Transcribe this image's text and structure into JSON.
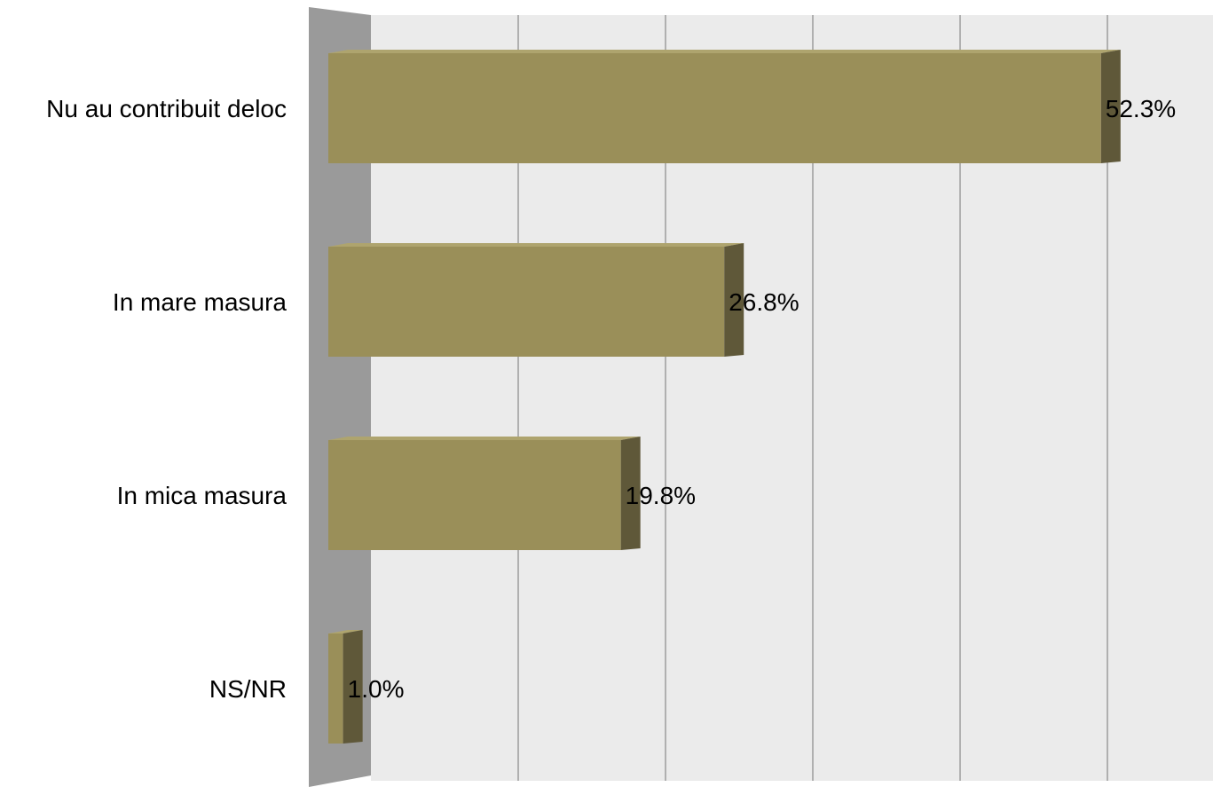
{
  "chart_data": {
    "type": "bar",
    "orientation": "horizontal",
    "style": "3d",
    "categories": [
      "Nu au contribuit deloc",
      "In mare masura",
      "In mica masura",
      "NS/NR"
    ],
    "values": [
      52.3,
      26.8,
      19.8,
      1.0
    ],
    "value_labels": [
      "52.3%",
      "26.8%",
      "19.8%",
      "1.0%"
    ],
    "xlim": [
      0,
      60
    ],
    "grid": true,
    "legend": "none"
  },
  "colors": {
    "bar_front": "#9a8f59",
    "bar_side": "#5f5839",
    "bar_top": "#aea46e",
    "wall_left": "#9a9a9a",
    "wall_back": "#ebebeb",
    "grid_line": "#9c9c9c"
  }
}
